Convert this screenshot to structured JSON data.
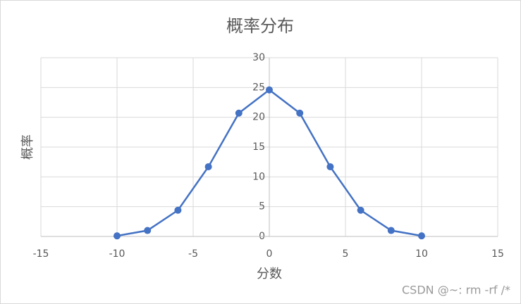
{
  "chart_data": {
    "type": "scatter-line",
    "title": "概率分布",
    "x_label": "分数",
    "y_label": "概率",
    "x": [
      -10,
      -8,
      -6,
      -4,
      -2,
      0,
      2,
      4,
      6,
      8,
      10
    ],
    "series": [
      {
        "color": "#4472c4",
        "values": [
          0.1,
          1.0,
          4.4,
          11.7,
          20.7,
          24.6,
          20.7,
          11.7,
          4.4,
          1.0,
          0.1
        ]
      }
    ],
    "xlim": [
      -15,
      15
    ],
    "xticks": [
      -15,
      -10,
      -5,
      0,
      5,
      10,
      15
    ],
    "ylim": [
      0,
      30
    ],
    "yticks": [
      0,
      5,
      10,
      15,
      20,
      25,
      30
    ],
    "grid": true
  },
  "watermark": "CSDN @~: rm -rf /*"
}
